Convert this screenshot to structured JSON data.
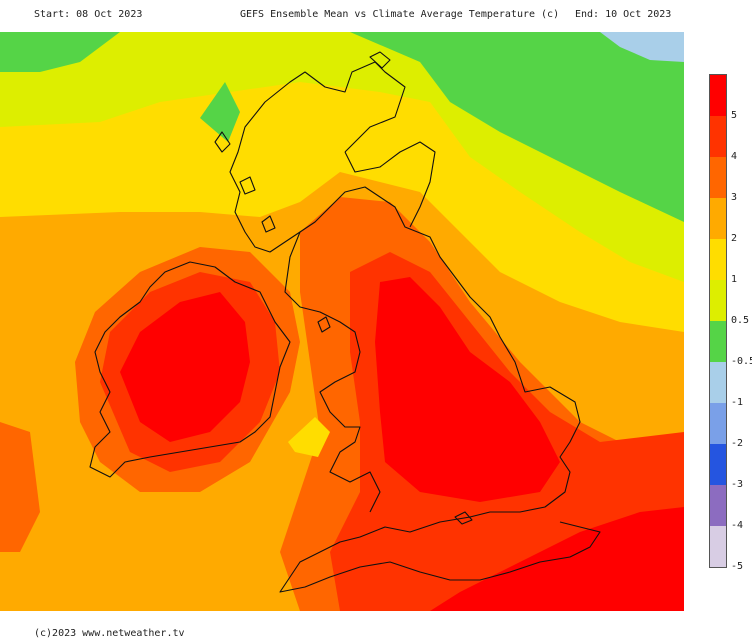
{
  "header": {
    "start_label": "Start: 08 Oct 2023",
    "title": "GEFS Ensemble Mean vs Climate Average Temperature (c)",
    "end_label": "End: 10 Oct 2023"
  },
  "legend": {
    "segments": [
      {
        "color": "#ff0000"
      },
      {
        "color": "#ff3300"
      },
      {
        "color": "#ff6600"
      },
      {
        "color": "#ffaa00"
      },
      {
        "color": "#ffdd00"
      },
      {
        "color": "#ddee00"
      },
      {
        "color": "#55d447"
      },
      {
        "color": "#a9cfe9"
      },
      {
        "color": "#7aa0e8"
      },
      {
        "color": "#2555e0"
      },
      {
        "color": "#8c6cc0"
      },
      {
        "color": "#d8cde4"
      }
    ],
    "ticks": [
      "5",
      "4",
      "3",
      "2",
      "1",
      "0.5",
      "-0.5",
      "-1",
      "-2",
      "-3",
      "-4",
      "-5"
    ]
  },
  "footer": {
    "copyright": "(c)2023 www.netweather.tv"
  }
}
